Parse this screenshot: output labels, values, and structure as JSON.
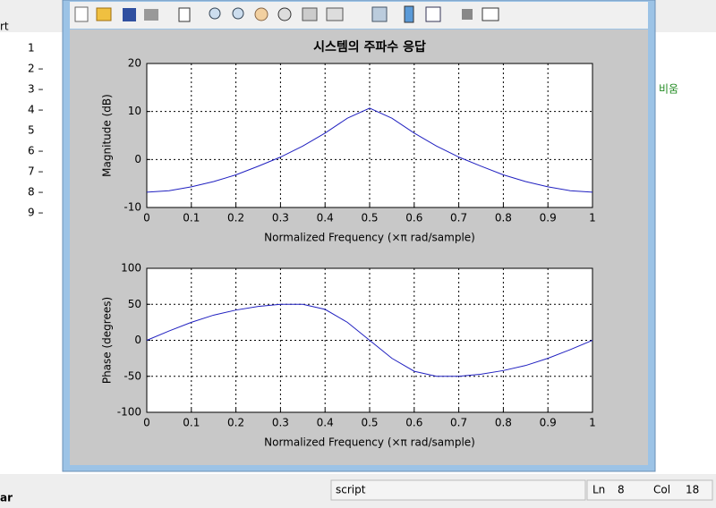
{
  "editor": {
    "line_numbers": [
      "1",
      "2 –",
      "3 –",
      "4 –",
      "5",
      "6 –",
      "7 –",
      "8 –",
      "9 –"
    ],
    "side_text": "비움",
    "left_stub": "rt",
    "corner_stub": "ar"
  },
  "status_bar": {
    "mode": "script",
    "ln_label": "Ln",
    "ln": "8",
    "col_label": "Col",
    "col": "18"
  },
  "chart_data": [
    {
      "type": "line",
      "title": "시스템의 주파수 응답",
      "x": [
        0,
        0.05,
        0.1,
        0.15,
        0.2,
        0.25,
        0.3,
        0.35,
        0.4,
        0.45,
        0.5,
        0.55,
        0.6,
        0.65,
        0.7,
        0.75,
        0.8,
        0.85,
        0.9,
        0.95,
        1
      ],
      "series": [
        {
          "color": "#2020c0",
          "values": [
            -6.8,
            -6.5,
            -5.7,
            -4.6,
            -3.2,
            -1.4,
            0.5,
            2.8,
            5.5,
            8.6,
            10.7,
            8.6,
            5.5,
            2.8,
            0.5,
            -1.4,
            -3.2,
            -4.6,
            -5.7,
            -6.5,
            -6.8
          ]
        }
      ],
      "xlabel": "Normalized Frequency  (×π rad/sample)",
      "ylabel": "Magnitude (dB)",
      "xlim": [
        0,
        1
      ],
      "xticks": [
        0,
        0.1,
        0.2,
        0.3,
        0.4,
        0.5,
        0.6,
        0.7,
        0.8,
        0.9,
        1
      ],
      "ylim": [
        -10,
        20
      ],
      "yticks": [
        -10,
        0,
        10,
        20
      ],
      "grid": true
    },
    {
      "type": "line",
      "x": [
        0,
        0.05,
        0.1,
        0.15,
        0.2,
        0.25,
        0.3,
        0.35,
        0.4,
        0.45,
        0.5,
        0.55,
        0.6,
        0.65,
        0.7,
        0.75,
        0.8,
        0.85,
        0.9,
        0.95,
        1
      ],
      "series": [
        {
          "color": "#2020c0",
          "values": [
            0,
            13,
            25,
            35,
            42,
            47,
            50,
            50,
            43,
            25,
            0,
            -25,
            -43,
            -50,
            -50,
            -47,
            -42,
            -35,
            -25,
            -13,
            0
          ]
        }
      ],
      "xlabel": "Normalized Frequency  (×π rad/sample)",
      "ylabel": "Phase (degrees)",
      "xlim": [
        0,
        1
      ],
      "xticks": [
        0,
        0.1,
        0.2,
        0.3,
        0.4,
        0.5,
        0.6,
        0.7,
        0.8,
        0.9,
        1
      ],
      "ylim": [
        -100,
        100
      ],
      "yticks": [
        -100,
        -50,
        0,
        50,
        100
      ],
      "grid": true
    }
  ]
}
